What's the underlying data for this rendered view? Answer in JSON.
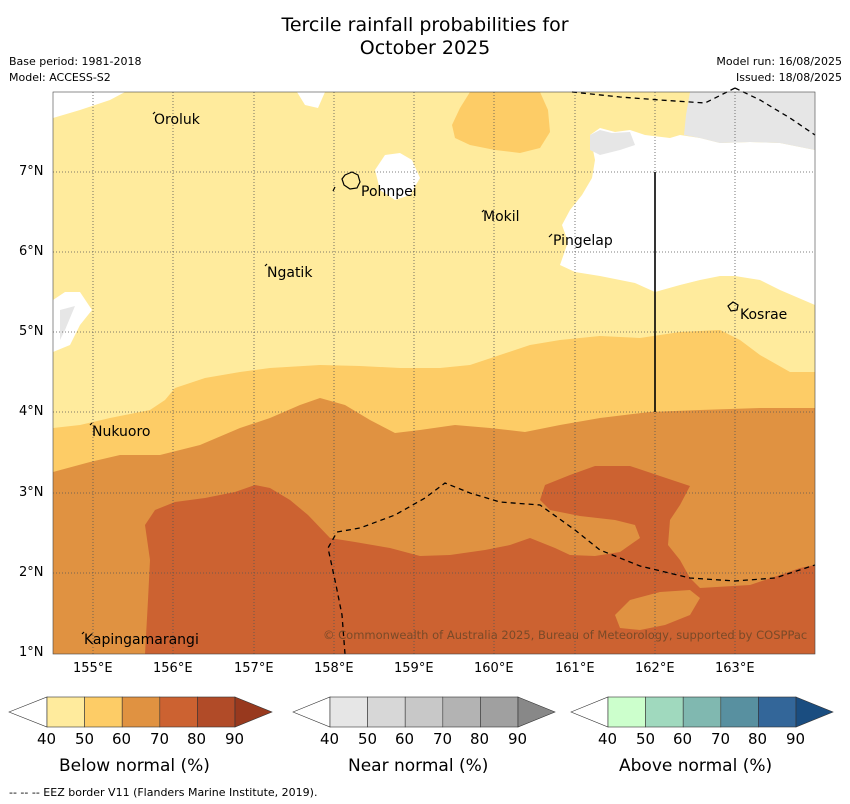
{
  "header": {
    "title_line1": "Tercile rainfall probabilities for",
    "title_line2": "October 2025",
    "base_period": "Base period: 1981-2018",
    "model": "Model: ACCESS-S2",
    "model_run": "Model run: 16/08/2025",
    "issued": "Issued: 18/08/2025"
  },
  "map": {
    "lon_labels": [
      "155°E",
      "156°E",
      "157°E",
      "158°E",
      "159°E",
      "160°E",
      "161°E",
      "162°E",
      "163°E"
    ],
    "lat_labels": [
      "7°N",
      "6°N",
      "5°N",
      "4°N",
      "3°N",
      "2°N",
      "1°N"
    ],
    "places": [
      "Oroluk",
      "Pohnpei",
      "Mokil",
      "Pingelap",
      "Ngatik",
      "Kosrae",
      "Nukuoro",
      "Kapingamarangi"
    ],
    "copyright": "© Commonwealth of Australia 2025, Bureau of Meteorology, supported by COSPPac",
    "colors": {
      "below_40_50": "#ffeb9d",
      "below_50_60": "#fdcc66",
      "below_60_70": "#e09241",
      "below_70_80": "#cc6231",
      "near_40_50": "#e6e6e6",
      "ocean_white": "#ffffff"
    }
  },
  "colorbars": [
    {
      "title": "Below normal (%)",
      "ticks": [
        "40",
        "50",
        "60",
        "70",
        "80",
        "90"
      ],
      "colors": [
        "#ffffff",
        "#ffeb9d",
        "#fdcc66",
        "#e09241",
        "#cc6231",
        "#b14b28",
        "#98391e"
      ]
    },
    {
      "title": "Near normal (%)",
      "ticks": [
        "40",
        "50",
        "60",
        "70",
        "80",
        "90"
      ],
      "colors": [
        "#ffffff",
        "#e6e6e6",
        "#d7d7d7",
        "#c8c8c8",
        "#b3b3b3",
        "#a0a0a0",
        "#888888"
      ]
    },
    {
      "title": "Above normal (%)",
      "ticks": [
        "40",
        "50",
        "60",
        "70",
        "80",
        "90"
      ],
      "colors": [
        "#ffffff",
        "#ccffcc",
        "#a0d9be",
        "#80b8b0",
        "#5890a0",
        "#336699",
        "#1a4d80"
      ]
    }
  ],
  "footnote": "--  --  -- EEZ border V11 (Flanders Marine Institute, 2019)."
}
